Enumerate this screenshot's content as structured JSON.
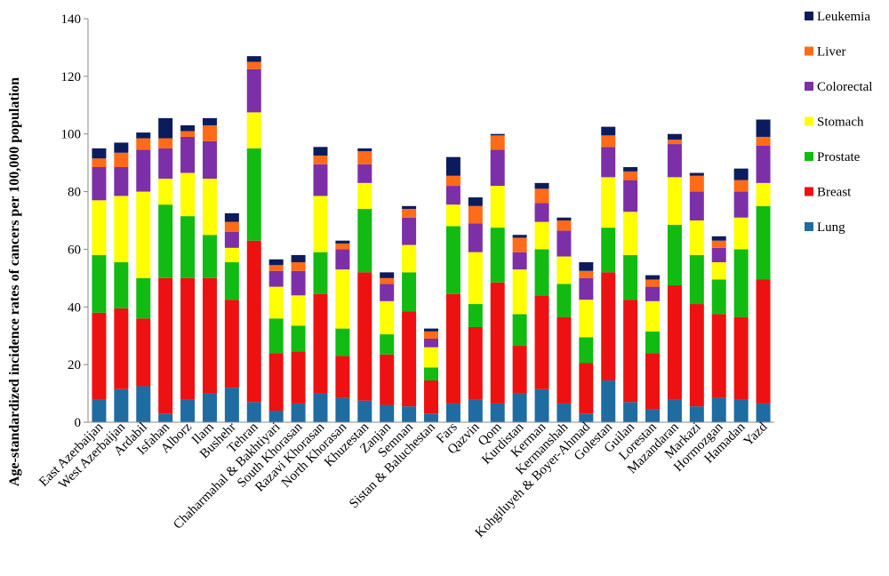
{
  "chart_data": {
    "type": "bar",
    "stacked": true,
    "ylabel": "Age-standardized incidence rates of cancers per 100,000 population",
    "xlabel": "",
    "ylim": [
      0,
      140
    ],
    "yticks": [
      0,
      20,
      40,
      60,
      80,
      100,
      120,
      140
    ],
    "grid": false,
    "legend_position": "right",
    "categories": [
      "East Azerbaijan",
      "West Azerbaijan",
      "Ardabil",
      "Isfahan",
      "Alborz",
      "Ilam",
      "Bushehr",
      "Tehran",
      "Chaharmahal & Bakhtiyari",
      "South Khorasan",
      "Razavi Khorasan",
      "North Khorasan",
      "Khuzestan",
      "Zanjan",
      "Semnan",
      "Sistan & Baluchestan",
      "Fars",
      "Qazvin",
      "Qom",
      "Kurdistan",
      "Kerman",
      "Kermanshah",
      "Kohgiluyeh & Boyer-Ahmad",
      "Golestan",
      "Guilan",
      "Lorestan",
      "Mazandaran",
      "Markazi",
      "Hormozgan",
      "Hamadan",
      "Yazd"
    ],
    "series": [
      {
        "name": "Lung",
        "color": "#1f6ca3",
        "values": [
          8,
          11.5,
          12.5,
          3,
          8,
          10,
          12,
          7,
          4,
          6.5,
          10,
          8.5,
          7.5,
          6,
          5.5,
          3,
          6.5,
          8,
          6.5,
          10,
          11.5,
          6.5,
          3,
          14.5,
          7,
          4.5,
          8,
          5.5,
          8.5,
          8,
          6.5
        ]
      },
      {
        "name": "Breast",
        "color": "#ee1111",
        "values": [
          30,
          28,
          23.5,
          47,
          42,
          40,
          30.5,
          56,
          20,
          18,
          34.5,
          14.5,
          44.5,
          17.5,
          33,
          11.5,
          38,
          25,
          42,
          16.5,
          32.5,
          30,
          17.5,
          37.5,
          35.5,
          19.5,
          39.5,
          35.5,
          29,
          28.5,
          43
        ]
      },
      {
        "name": "Prostate",
        "color": "#11bb11",
        "values": [
          20,
          16,
          14,
          25.5,
          21.5,
          15,
          13,
          32,
          12,
          9,
          14.5,
          9.5,
          22,
          7,
          13.5,
          4.5,
          23.5,
          8,
          19,
          11,
          16,
          11.5,
          9,
          15.5,
          15.5,
          7.5,
          21,
          17,
          12,
          23.5,
          25.5
        ]
      },
      {
        "name": "Stomach",
        "color": "#ffff00",
        "values": [
          19,
          23,
          30,
          9,
          15,
          19.5,
          5,
          12.5,
          11,
          10.5,
          19.5,
          20.5,
          9,
          11.5,
          9.5,
          7,
          7.5,
          18,
          14.5,
          15.5,
          9.5,
          9.5,
          13,
          17.5,
          15,
          10.5,
          16.5,
          12,
          6,
          11,
          8
        ]
      },
      {
        "name": "Colorectal",
        "color": "#7d2fa8",
        "values": [
          11.5,
          10,
          14.5,
          10.5,
          12.5,
          13,
          5.5,
          15,
          5.5,
          8.5,
          11,
          7,
          6.5,
          6,
          9.5,
          3,
          6.5,
          10,
          12.5,
          6,
          6.5,
          9,
          7.5,
          10.5,
          11,
          5,
          11.5,
          10,
          5,
          9,
          13
        ]
      },
      {
        "name": "Liver",
        "color": "#ff6b17",
        "values": [
          3,
          5,
          4,
          3.5,
          2,
          5.5,
          3.5,
          2.5,
          2,
          3,
          3,
          2,
          4.5,
          2,
          3,
          2.5,
          3.5,
          6,
          5,
          5,
          5,
          3.5,
          2.5,
          4,
          3,
          2.5,
          1.5,
          5.5,
          2.5,
          4,
          3
        ]
      },
      {
        "name": "Leukemia",
        "color": "#0b1c5e",
        "values": [
          3.5,
          3.5,
          2,
          7,
          2,
          2.5,
          3,
          2,
          2,
          2.5,
          3,
          1,
          1,
          2,
          1,
          1,
          6.5,
          3,
          0.5,
          1,
          2,
          1,
          3,
          3,
          1.5,
          1.5,
          2,
          1,
          1.5,
          4,
          6
        ]
      }
    ]
  }
}
